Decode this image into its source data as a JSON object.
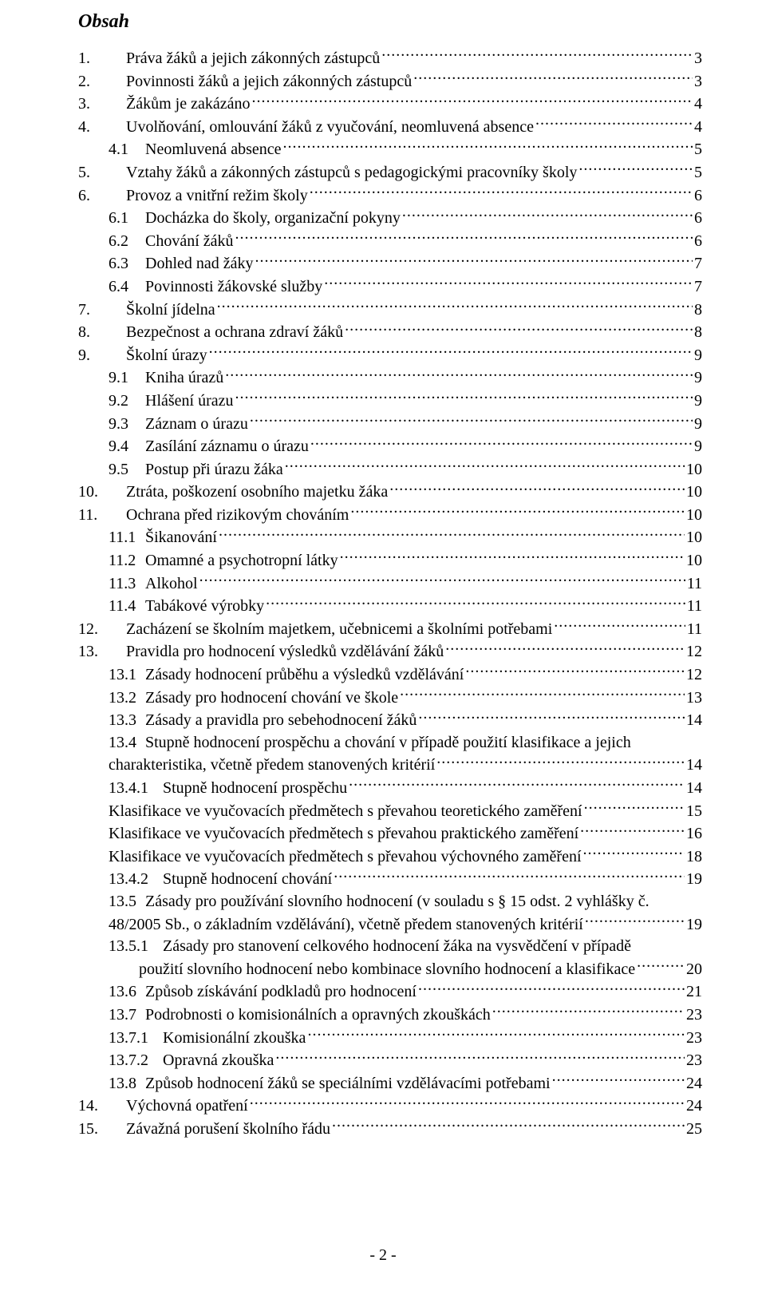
{
  "title": "Obsah",
  "footer": "- 2 -",
  "entries": [
    {
      "indent": 0,
      "num": "1.",
      "text": "Práva žáků a jejich zákonných zástupců",
      "page": "3"
    },
    {
      "indent": 0,
      "num": "2.",
      "text": "Povinnosti žáků a jejich zákonných zástupců",
      "page": "3"
    },
    {
      "indent": 0,
      "num": "3.",
      "text": "Žákům je zakázáno",
      "page": "4"
    },
    {
      "indent": 0,
      "num": "4.",
      "text": "Uvolňování, omlouvání žáků z vyučování, neomluvená absence",
      "page": "4"
    },
    {
      "indent": 1,
      "num": "4.1",
      "text": "Neomluvená absence",
      "page": "5"
    },
    {
      "indent": 0,
      "num": "5.",
      "text": "Vztahy žáků a zákonných zástupců s pedagogickými pracovníky školy",
      "page": "5"
    },
    {
      "indent": 0,
      "num": "6.",
      "text": "Provoz a vnitřní režim školy",
      "page": "6"
    },
    {
      "indent": 1,
      "num": "6.1",
      "text": "Docházka do školy, organizační pokyny",
      "page": "6"
    },
    {
      "indent": 1,
      "num": "6.2",
      "text": "Chování žáků",
      "page": "6"
    },
    {
      "indent": 1,
      "num": "6.3",
      "text": "Dohled nad žáky",
      "page": "7"
    },
    {
      "indent": 1,
      "num": "6.4",
      "text": "Povinnosti žákovské služby",
      "page": "7"
    },
    {
      "indent": 0,
      "num": "7.",
      "text": "Školní jídelna",
      "page": "8"
    },
    {
      "indent": 0,
      "num": "8.",
      "text": "Bezpečnost a ochrana zdraví žáků",
      "page": "8"
    },
    {
      "indent": 0,
      "num": "9.",
      "text": "Školní úrazy",
      "page": "9"
    },
    {
      "indent": 1,
      "num": "9.1",
      "text": "Kniha úrazů",
      "page": "9"
    },
    {
      "indent": 1,
      "num": "9.2",
      "text": "Hlášení úrazu",
      "page": "9"
    },
    {
      "indent": 1,
      "num": "9.3",
      "text": "Záznam o úrazu",
      "page": "9"
    },
    {
      "indent": 1,
      "num": "9.4",
      "text": "Zasílání záznamu o úrazu",
      "page": "9"
    },
    {
      "indent": 1,
      "num": "9.5",
      "text": "Postup při úrazu žáka",
      "page": "10"
    },
    {
      "indent": 0,
      "num": "10.",
      "text": "Ztráta, poškození osobního majetku žáka",
      "page": "10"
    },
    {
      "indent": 0,
      "num": "11.",
      "text": "Ochrana před rizikovým chováním",
      "page": "10"
    },
    {
      "indent": 1,
      "num": "11.1",
      "text": "Šikanování",
      "page": "10"
    },
    {
      "indent": 1,
      "num": "11.2",
      "text": "Omamné a psychotropní látky",
      "page": "10"
    },
    {
      "indent": 1,
      "num": "11.3",
      "text": "Alkohol",
      "page": "11"
    },
    {
      "indent": 1,
      "num": "11.4",
      "text": "Tabákové výrobky",
      "page": "11"
    },
    {
      "indent": 0,
      "num": "12.",
      "text": "Zacházení se školním majetkem, učebnicemi a školními potřebami",
      "page": "11"
    },
    {
      "indent": 0,
      "num": "13.",
      "text": "Pravidla pro hodnocení výsledků vzdělávání žáků",
      "page": "12"
    },
    {
      "indent": 1,
      "num": "13.1",
      "text": "Zásady hodnocení průběhu a výsledků vzdělávání",
      "page": "12"
    },
    {
      "indent": 1,
      "num": "13.2",
      "text": "Zásady pro hodnocení chování ve škole",
      "page": "13"
    },
    {
      "indent": 1,
      "num": "13.3",
      "text": "Zásady a pravidla pro sebehodnocení žáků",
      "page": "14"
    },
    {
      "indent": 1,
      "num": "13.4",
      "text": "Stupně hodnocení prospěchu a chování v případě použití klasifikace a jejich",
      "wrapText": "charakteristika, včetně předem stanovených kritérií",
      "page": "14"
    },
    {
      "indent": 2,
      "num": "13.4.1",
      "text": "Stupně hodnocení prospěchu",
      "page": "14"
    },
    {
      "indent": 2,
      "num": "",
      "text": "Klasifikace ve vyučovacích předmětech s převahou teoretického zaměření",
      "page": "15"
    },
    {
      "indent": 2,
      "num": "",
      "text": "Klasifikace ve vyučovacích předmětech s převahou praktického zaměření",
      "page": "16"
    },
    {
      "indent": 2,
      "num": "",
      "text": "Klasifikace ve vyučovacích předmětech s převahou výchovného zaměření",
      "page": "18"
    },
    {
      "indent": 2,
      "num": "13.4.2",
      "text": "Stupně hodnocení chování",
      "page": "19"
    },
    {
      "indent": 1,
      "num": "13.5",
      "text": "Zásady pro používání slovního hodnocení (v souladu s § 15 odst. 2 vyhlášky č.",
      "wrapText": "48/2005 Sb., o základním vzdělávání), včetně předem stanovených kritérií",
      "page": "19"
    },
    {
      "indent": 2,
      "num": "13.5.1",
      "text": "Zásady pro stanovení celkového hodnocení žáka na vysvědčení v případě",
      "wrapText": "použití slovního hodnocení nebo kombinace slovního hodnocení a klasifikace",
      "page": "20",
      "wrapIndent": 3
    },
    {
      "indent": 1,
      "num": "13.6",
      "text": "Způsob získávání podkladů pro hodnocení",
      "page": "21"
    },
    {
      "indent": 1,
      "num": "13.7",
      "text": "Podrobnosti o komisionálních a opravných zkouškách",
      "page": "23"
    },
    {
      "indent": 2,
      "num": "13.7.1",
      "text": "Komisionální zkouška",
      "page": "23"
    },
    {
      "indent": 2,
      "num": "13.7.2",
      "text": "Opravná zkouška",
      "page": "23"
    },
    {
      "indent": 1,
      "num": "13.8",
      "text": "Způsob hodnocení žáků se speciálními vzdělávacími potřebami",
      "page": "24"
    },
    {
      "indent": 0,
      "num": "14.",
      "text": "Výchovná opatření",
      "page": "24"
    },
    {
      "indent": 0,
      "num": "15.",
      "text": "Závažná porušení školního řádu",
      "page": "25"
    }
  ]
}
